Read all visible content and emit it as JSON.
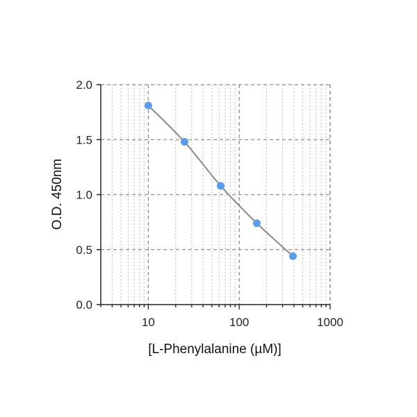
{
  "chart_data": {
    "type": "scatter",
    "title": "",
    "xlabel": "[L-Phenylalanine (µM)]",
    "ylabel": "O.D. 450nm",
    "x_scale": "log",
    "xlim": [
      3,
      1000
    ],
    "ylim": [
      0,
      2.0
    ],
    "x_ticks": [
      10,
      100,
      1000
    ],
    "x_tick_labels": [
      "10",
      "100",
      "1000"
    ],
    "y_ticks": [
      0,
      0.5,
      1.0,
      1.5,
      2.0
    ],
    "y_tick_labels": [
      "0.0",
      "0.5",
      "1.0",
      "1.5",
      "2.0"
    ],
    "grid": true,
    "legend": "none",
    "series": [
      {
        "x": [
          10,
          25,
          62.5,
          156,
          390
        ],
        "y": [
          1.81,
          1.48,
          1.08,
          0.74,
          0.44
        ],
        "marker_color": "#5b9be8",
        "line_color": "#8a8a8a"
      }
    ]
  }
}
